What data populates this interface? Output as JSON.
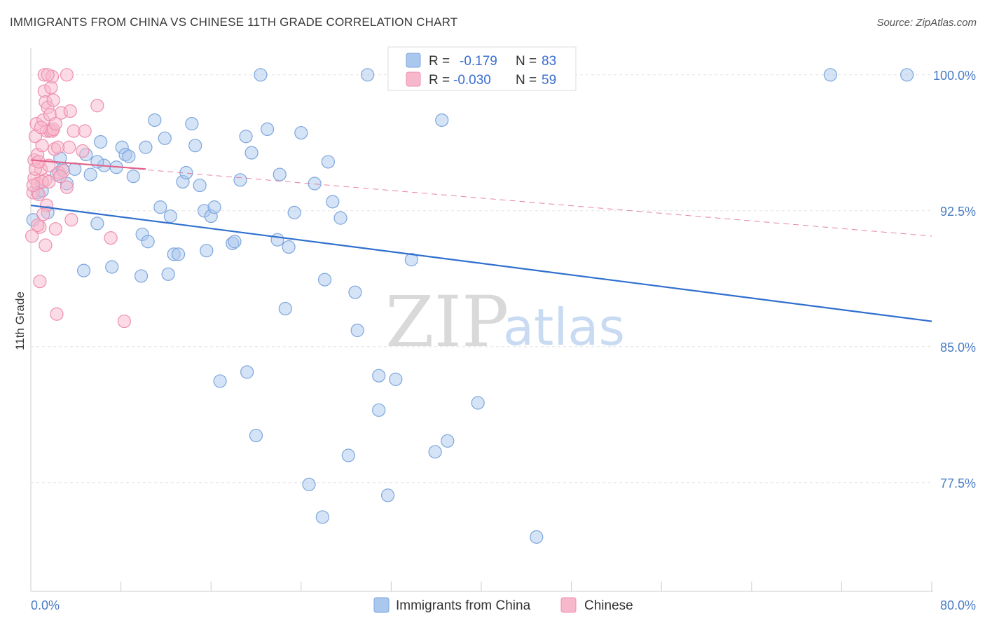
{
  "title": "IMMIGRANTS FROM CHINA VS CHINESE 11TH GRADE CORRELATION CHART",
  "source": "Source: ZipAtlas.com",
  "watermark": {
    "zip": "ZIP",
    "atlas": "atlas"
  },
  "colors": {
    "blue_fill": "#aac8ee",
    "blue_stroke": "#7ea6dc",
    "blue_line": "#2f6fcf",
    "pink_fill": "#f7b8cc",
    "pink_stroke": "#ee8fae",
    "pink_line": "#e2638c",
    "axis_text": "#4a7cc6"
  },
  "legend": {
    "rows": [
      {
        "r_label": "R =",
        "r_value": "-0.179",
        "n_label": "N =",
        "n_value": "83"
      },
      {
        "r_label": "R =",
        "r_value": "-0.030",
        "n_label": "N =",
        "n_value": "59"
      }
    ]
  },
  "bottom_legend": [
    "Immigrants from China",
    "Chinese"
  ],
  "chart_data": {
    "type": "scatter",
    "ylabel": "11th Grade",
    "xlim": [
      0,
      80
    ],
    "ylim": [
      71.5,
      101.5
    ],
    "x_tick_labels": [
      "0.0%",
      "80.0%"
    ],
    "y_ticks": [
      {
        "value": 100.0,
        "label": "100.0%"
      },
      {
        "value": 92.5,
        "label": "92.5%"
      },
      {
        "value": 85.0,
        "label": "85.0%"
      },
      {
        "value": 77.5,
        "label": "77.5%"
      }
    ],
    "grid": true,
    "legend_position": "top-center",
    "series": [
      {
        "name": "Immigrants from China",
        "color": "blue",
        "trend": {
          "x": [
            0,
            80
          ],
          "y": [
            92.8,
            86.4
          ],
          "dashed": false
        },
        "points": [
          [
            0.2,
            92.0
          ],
          [
            0.6,
            93.5
          ],
          [
            1.5,
            92.4
          ],
          [
            2.6,
            95.4
          ],
          [
            2.3,
            94.5
          ],
          [
            3.2,
            94.0
          ],
          [
            3.9,
            94.8
          ],
          [
            4.9,
            95.6
          ],
          [
            5.3,
            94.5
          ],
          [
            5.9,
            91.8
          ],
          [
            6.2,
            96.3
          ],
          [
            6.5,
            95.0
          ],
          [
            7.2,
            89.4
          ],
          [
            7.6,
            94.9
          ],
          [
            8.1,
            96.0
          ],
          [
            8.4,
            95.6
          ],
          [
            8.7,
            95.5
          ],
          [
            9.1,
            94.4
          ],
          [
            9.9,
            91.2
          ],
          [
            4.7,
            89.2
          ],
          [
            10.2,
            96.0
          ],
          [
            10.4,
            90.8
          ],
          [
            11.0,
            97.5
          ],
          [
            11.5,
            92.7
          ],
          [
            11.9,
            96.5
          ],
          [
            12.4,
            92.2
          ],
          [
            12.7,
            90.1
          ],
          [
            13.1,
            90.1
          ],
          [
            13.5,
            94.1
          ],
          [
            14.3,
            97.3
          ],
          [
            14.6,
            96.1
          ],
          [
            15.0,
            93.9
          ],
          [
            15.4,
            92.5
          ],
          [
            15.6,
            90.3
          ],
          [
            16.0,
            92.2
          ],
          [
            16.3,
            92.7
          ],
          [
            16.8,
            83.1
          ],
          [
            17.9,
            90.7
          ],
          [
            18.1,
            90.8
          ],
          [
            19.1,
            96.6
          ],
          [
            19.2,
            83.6
          ],
          [
            19.6,
            95.7
          ],
          [
            20.0,
            80.1
          ],
          [
            20.4,
            100.0
          ],
          [
            21.0,
            97.0
          ],
          [
            21.9,
            90.9
          ],
          [
            22.1,
            94.5
          ],
          [
            22.6,
            87.1
          ],
          [
            22.9,
            90.5
          ],
          [
            23.4,
            92.4
          ],
          [
            24.0,
            96.8
          ],
          [
            24.7,
            77.4
          ],
          [
            25.9,
            75.6
          ],
          [
            26.1,
            88.7
          ],
          [
            26.4,
            95.2
          ],
          [
            26.8,
            93.0
          ],
          [
            27.5,
            92.1
          ],
          [
            28.2,
            79.0
          ],
          [
            28.8,
            88.0
          ],
          [
            29.0,
            85.9
          ],
          [
            29.9,
            100.0
          ],
          [
            30.9,
            81.5
          ],
          [
            30.9,
            83.4
          ],
          [
            31.7,
            76.8
          ],
          [
            32.4,
            83.2
          ],
          [
            33.4,
            100.0
          ],
          [
            33.8,
            89.8
          ],
          [
            35.9,
            79.2
          ],
          [
            36.5,
            97.5
          ],
          [
            37.0,
            79.8
          ],
          [
            39.7,
            81.9
          ],
          [
            44.9,
            74.5
          ],
          [
            71.0,
            100.0
          ],
          [
            77.8,
            100.0
          ],
          [
            9.8,
            88.9
          ],
          [
            2.8,
            94.8
          ],
          [
            1.0,
            93.6
          ],
          [
            13.8,
            94.6
          ],
          [
            25.2,
            94.0
          ],
          [
            38.5,
            100.0
          ],
          [
            5.9,
            95.2
          ],
          [
            12.2,
            89.0
          ],
          [
            18.6,
            94.2
          ]
        ]
      },
      {
        "name": "Chinese",
        "color": "pink",
        "trend": {
          "x": [
            0,
            10.2
          ],
          "y": [
            95.3,
            94.8
          ],
          "dashed": false
        },
        "trend_dashed": {
          "x": [
            0,
            80
          ],
          "y": [
            95.3,
            91.1
          ]
        },
        "points": [
          [
            0.1,
            91.1
          ],
          [
            0.2,
            93.5
          ],
          [
            0.3,
            94.3
          ],
          [
            0.3,
            95.3
          ],
          [
            0.4,
            96.6
          ],
          [
            0.5,
            97.3
          ],
          [
            0.6,
            95.6
          ],
          [
            0.6,
            94.0
          ],
          [
            0.7,
            93.4
          ],
          [
            0.8,
            91.6
          ],
          [
            0.8,
            88.6
          ],
          [
            0.9,
            94.8
          ],
          [
            1.0,
            96.1
          ],
          [
            1.1,
            97.5
          ],
          [
            1.2,
            99.1
          ],
          [
            1.2,
            100.0
          ],
          [
            1.3,
            98.5
          ],
          [
            1.3,
            94.2
          ],
          [
            1.4,
            92.8
          ],
          [
            1.4,
            96.9
          ],
          [
            1.5,
            98.2
          ],
          [
            1.6,
            95.0
          ],
          [
            1.7,
            96.9
          ],
          [
            1.7,
            97.8
          ],
          [
            1.8,
            99.3
          ],
          [
            1.9,
            96.9
          ],
          [
            2.0,
            97.0
          ],
          [
            2.0,
            98.6
          ],
          [
            2.1,
            95.9
          ],
          [
            2.2,
            97.3
          ],
          [
            2.2,
            91.5
          ],
          [
            2.3,
            86.8
          ],
          [
            2.5,
            94.6
          ],
          [
            2.7,
            97.9
          ],
          [
            2.9,
            94.7
          ],
          [
            3.2,
            93.8
          ],
          [
            3.2,
            100.0
          ],
          [
            3.4,
            96.0
          ],
          [
            3.5,
            98.0
          ],
          [
            3.6,
            92.0
          ],
          [
            3.8,
            96.9
          ],
          [
            4.6,
            95.8
          ],
          [
            4.8,
            96.9
          ],
          [
            5.9,
            98.3
          ],
          [
            7.1,
            91.0
          ],
          [
            8.3,
            86.4
          ],
          [
            1.0,
            94.1
          ],
          [
            0.6,
            91.7
          ],
          [
            1.3,
            90.6
          ],
          [
            1.6,
            94.1
          ],
          [
            0.4,
            94.8
          ],
          [
            0.9,
            97.1
          ],
          [
            1.9,
            99.9
          ],
          [
            2.4,
            96.0
          ],
          [
            0.2,
            93.9
          ],
          [
            1.1,
            92.3
          ],
          [
            2.6,
            94.4
          ],
          [
            1.5,
            100.0
          ],
          [
            0.7,
            95.2
          ]
        ]
      }
    ]
  }
}
